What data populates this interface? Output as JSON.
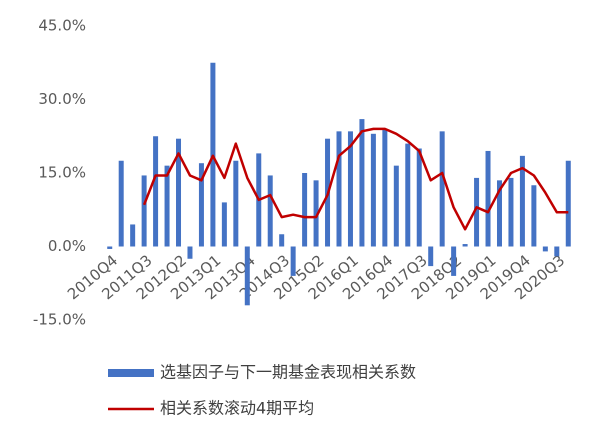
{
  "chart_data": {
    "type": "bar",
    "categories": [
      "2010Q4",
      null,
      null,
      "2011Q3",
      null,
      null,
      "2012Q2",
      null,
      null,
      "2013Q1",
      null,
      null,
      "2013Q4",
      null,
      null,
      "2014Q3",
      null,
      null,
      "2015Q2",
      null,
      null,
      "2016Q1",
      null,
      null,
      "2016Q4",
      null,
      null,
      "2017Q3",
      null,
      null,
      "2018Q2",
      null,
      null,
      "2019Q1",
      null,
      null,
      "2019Q4",
      null,
      null,
      "2020Q3",
      null
    ],
    "series": [
      {
        "name": "选基因子与下一期基金表现相关系数",
        "type": "bar",
        "color": "#4472c4",
        "values": [
          -0.5,
          17.5,
          4.5,
          14.5,
          22.5,
          16.5,
          22,
          -2.5,
          17,
          37.5,
          9,
          17.5,
          -12,
          19,
          14.5,
          2.5,
          -6,
          15,
          13.5,
          22,
          23.5,
          23.5,
          26,
          23,
          24,
          16.5,
          21,
          20,
          -4,
          23.5,
          -6,
          0.5,
          14,
          19.5,
          13.5,
          14,
          18.5,
          12.5,
          -1,
          -2,
          17.5
        ]
      },
      {
        "name": "相关系数滚动4期平均",
        "type": "line",
        "color": "#c00000",
        "values": [
          null,
          null,
          null,
          8.5,
          14.5,
          14.5,
          19,
          14.5,
          13.5,
          18.5,
          14,
          21,
          14,
          9.5,
          10.5,
          6,
          6.5,
          6,
          6,
          10.5,
          18.5,
          20.5,
          23.5,
          24,
          24,
          23,
          21.5,
          19.5,
          13.5,
          15,
          8,
          3.5,
          8,
          7,
          11.5,
          15,
          16,
          14.5,
          11,
          7,
          7
        ]
      }
    ],
    "ylim": [
      -15,
      45
    ],
    "yticks": [
      {
        "value": -15,
        "label": "-15.0%"
      },
      {
        "value": 0,
        "label": "0.0%"
      },
      {
        "value": 15,
        "label": "15.0%"
      },
      {
        "value": 30,
        "label": "30.0%"
      },
      {
        "value": 45,
        "label": "45.0%"
      }
    ],
    "grid": false,
    "legend": "bottom"
  }
}
